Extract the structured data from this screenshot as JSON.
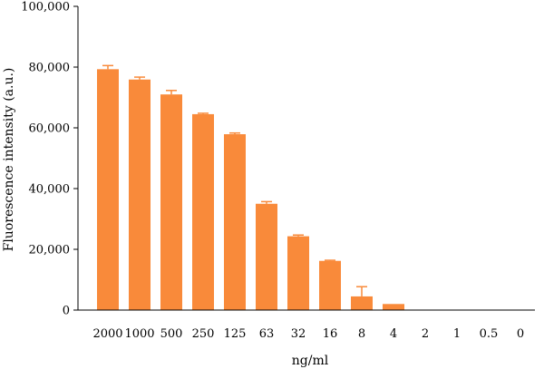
{
  "chart_data": {
    "type": "bar",
    "xlabel": "ng/ml",
    "ylabel": "Fluorescence intensity (a.u.)",
    "ylim": [
      0,
      100000
    ],
    "yticks": [
      "0",
      "20,000",
      "40,000",
      "60,000",
      "80,000",
      "100,000"
    ],
    "ytick_values": [
      0,
      20000,
      40000,
      60000,
      80000,
      100000
    ],
    "categories": [
      "2000",
      "1000",
      "500",
      "250",
      "125",
      "63",
      "32",
      "16",
      "8",
      "4",
      "2",
      "1",
      "0.5",
      "0"
    ],
    "values": [
      79300,
      75900,
      71000,
      64500,
      57900,
      35000,
      24300,
      16200,
      4500,
      2000,
      0,
      0,
      0,
      0
    ],
    "errors": [
      1200,
      800,
      1300,
      300,
      400,
      700,
      400,
      200,
      3200,
      0,
      0,
      0,
      0,
      0
    ],
    "bar_color": "#F98A3A",
    "grid": false
  }
}
